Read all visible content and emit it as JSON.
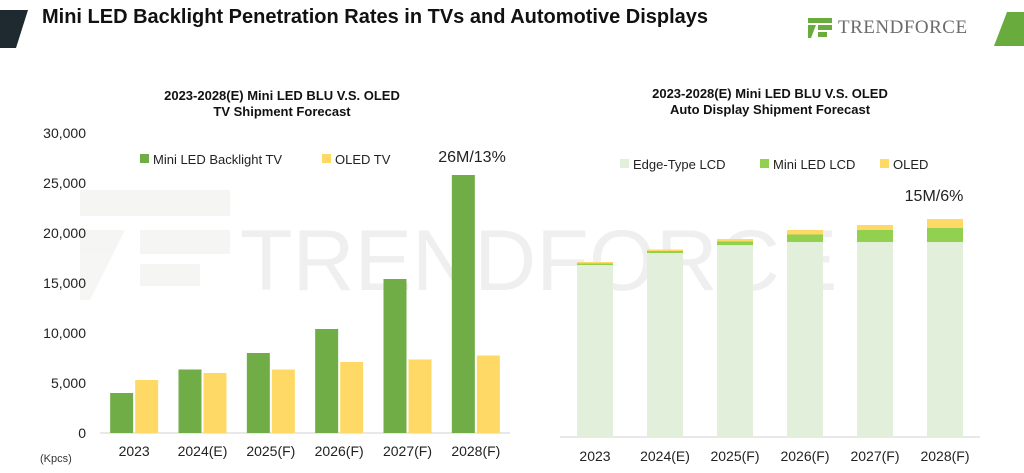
{
  "header": {
    "title": "Mini LED Backlight Penetration Rates in TVs and Automotive Displays",
    "brand": "TRENDFORCE",
    "watermark": "TRENDFORCE",
    "colors": {
      "accent_green": "#6aab3e",
      "dark_bar": "#1f2a30"
    }
  },
  "chart_data": [
    {
      "type": "bar",
      "title_line1": "2023-2028(E) Mini LED BLU V.S. OLED",
      "title_line2": "TV Shipment Forecast",
      "unit": "(Kpcs)",
      "categories": [
        "2023",
        "2024(E)",
        "2025(F)",
        "2026(F)",
        "2027(F)",
        "2028(F)"
      ],
      "series": [
        {
          "name": "Mini LED Backlight TV",
          "color": "#70ad47",
          "values": [
            4000,
            6350,
            8000,
            10400,
            15400,
            25800
          ]
        },
        {
          "name": "OLED TV",
          "color": "#ffd966",
          "values": [
            5300,
            6000,
            6350,
            7100,
            7350,
            7750
          ]
        }
      ],
      "ylim": [
        0,
        30000
      ],
      "yticks": [
        0,
        5000,
        10000,
        15000,
        20000,
        25000,
        30000
      ],
      "ytick_labels": [
        "0",
        "5,000",
        "10,000",
        "15,000",
        "20,000",
        "25,000",
        "30,000"
      ],
      "annotation": "26M/13%",
      "legend_position": "top"
    },
    {
      "type": "stacked-bar",
      "title_line1": "2023-2028(E) Mini LED BLU V.S. OLED",
      "title_line2": "Auto Display Shipment Forecast",
      "categories": [
        "2023",
        "2024(E)",
        "2025(F)",
        "2026(F)",
        "2027(F)",
        "2028(F)"
      ],
      "series": [
        {
          "name": "Edge-Type LCD",
          "color": "#e2efda",
          "values": [
            17200,
            18400,
            19200,
            19500,
            19500,
            19500
          ]
        },
        {
          "name": "Mini LED LCD",
          "color": "#92d050",
          "values": [
            150,
            200,
            350,
            750,
            1200,
            1400
          ]
        },
        {
          "name": "OLED",
          "color": "#ffd966",
          "values": [
            150,
            150,
            250,
            450,
            500,
            900
          ]
        }
      ],
      "ylim": [
        0,
        30000
      ],
      "annotation": "15M/6%",
      "legend_position": "top"
    }
  ]
}
